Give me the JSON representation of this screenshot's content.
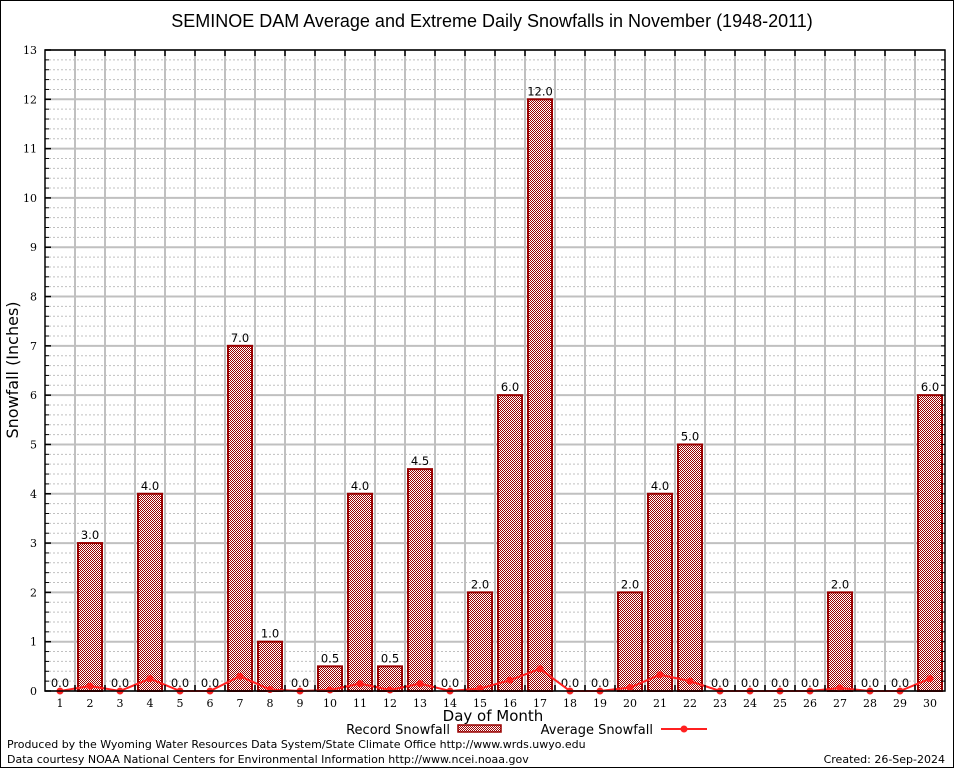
{
  "chart_data": {
    "type": "bar",
    "title": "SEMINOE DAM Average and Extreme Daily Snowfalls in November (1948-2011)",
    "xlabel": "Day of Month",
    "ylabel": "Snowfall (Inches)",
    "ylim": [
      0,
      13
    ],
    "yticks": [
      "0",
      "1",
      "2",
      "3",
      "4",
      "5",
      "6",
      "7",
      "8",
      "9",
      "10",
      "11",
      "12",
      "13"
    ],
    "grid": true,
    "legend_position": "bottom-center",
    "categories": [
      "1",
      "2",
      "3",
      "4",
      "5",
      "6",
      "7",
      "8",
      "9",
      "10",
      "11",
      "12",
      "13",
      "14",
      "15",
      "16",
      "17",
      "18",
      "19",
      "20",
      "21",
      "22",
      "23",
      "24",
      "25",
      "26",
      "27",
      "28",
      "29",
      "30"
    ],
    "series": [
      {
        "name": "Record Snowfall",
        "kind": "bar",
        "color": "#990000",
        "values": [
          0.0,
          3.0,
          0.0,
          4.0,
          0.0,
          0.0,
          7.0,
          1.0,
          0.0,
          0.5,
          4.0,
          0.5,
          4.5,
          0.0,
          2.0,
          6.0,
          12.0,
          0.0,
          0.0,
          2.0,
          4.0,
          5.0,
          0.0,
          0.0,
          0.0,
          0.0,
          2.0,
          0.0,
          0.0,
          6.0
        ],
        "labels": [
          "0.0",
          "3.0",
          "0.0",
          "4.0",
          "0.0",
          "0.0",
          "7.0",
          "1.0",
          "0.0",
          "0.5",
          "4.0",
          "0.5",
          "4.5",
          "0.0",
          "2.0",
          "6.0",
          "12.0",
          "0.0",
          "0.0",
          "2.0",
          "4.0",
          "5.0",
          "0.0",
          "0.0",
          "0.0",
          "0.0",
          "2.0",
          "0.0",
          "0.0",
          "6.0"
        ]
      },
      {
        "name": "Average Snowfall",
        "kind": "line",
        "color": "#ff2020",
        "values": [
          0.0,
          0.1,
          0.0,
          0.25,
          0.0,
          0.0,
          0.3,
          0.03,
          0.0,
          0.02,
          0.15,
          0.02,
          0.15,
          0.0,
          0.05,
          0.22,
          0.45,
          0.0,
          0.0,
          0.07,
          0.33,
          0.2,
          0.0,
          0.0,
          0.0,
          0.0,
          0.06,
          0.0,
          0.0,
          0.25
        ]
      }
    ]
  },
  "footer": {
    "produced_by": "Produced by the Wyoming Water Resources Data System/State Climate Office http://www.wrds.uwyo.edu",
    "courtesy": "Data courtesy NOAA National Centers for Environmental Information http://www.ncei.noaa.gov",
    "created": "Created:  26-Sep-2024"
  }
}
